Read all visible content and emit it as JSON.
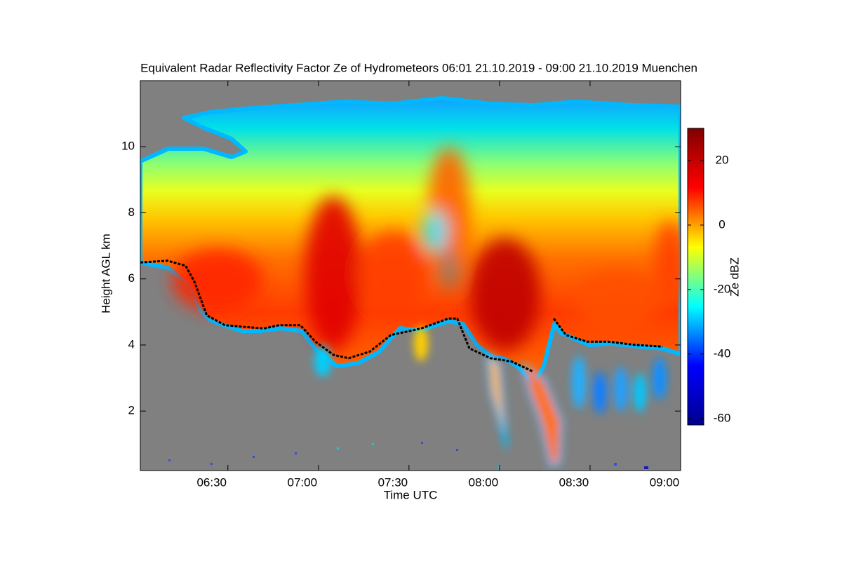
{
  "chart_data": {
    "type": "heatmap",
    "title": "Equivalent Radar Reflectivity Factor Ze of Hydrometeors   06:01 21.10.2019 - 09:00 21.10.2019 Muenchen",
    "x_label": "Time UTC",
    "y_label": "Height AGL km",
    "xlim": [
      "06:01",
      "09:00"
    ],
    "xticks": [
      "06:30",
      "07:00",
      "07:30",
      "08:00",
      "08:30",
      "09:00"
    ],
    "ylim": [
      0.2,
      12.0
    ],
    "yticks": [
      2,
      4,
      6,
      8,
      10
    ],
    "colorbar": {
      "label": "Ze dBZ",
      "clim": [
        -62,
        30
      ],
      "ticks": [
        -60,
        -40,
        -20,
        0,
        20
      ],
      "colors": [
        "#00008f",
        "#0000ff",
        "#00ffff",
        "#ffff00",
        "#ff0000",
        "#800000"
      ]
    },
    "overlay": {
      "type": "line",
      "color": "#000000",
      "x": [
        "06:01",
        "06:10",
        "06:16",
        "06:19",
        "06:23",
        "06:29",
        "06:35",
        "06:42",
        "06:47",
        "06:54",
        "06:59",
        "07:05",
        "07:10",
        "07:17",
        "07:24",
        "07:34",
        "07:43",
        "07:46",
        "07:50",
        "07:57",
        "08:04",
        "08:11",
        "08:15",
        "08:18",
        "08:22",
        "08:29",
        "08:36",
        "08:45",
        "08:54"
      ],
      "values": [
        6.5,
        6.55,
        6.4,
        5.9,
        4.9,
        4.6,
        4.55,
        4.5,
        4.6,
        4.6,
        4.1,
        3.7,
        3.6,
        3.8,
        4.3,
        4.5,
        4.8,
        4.8,
        3.9,
        3.6,
        3.5,
        3.2,
        null,
        4.8,
        4.3,
        4.1,
        4.1,
        4.0,
        3.95
      ]
    }
  }
}
